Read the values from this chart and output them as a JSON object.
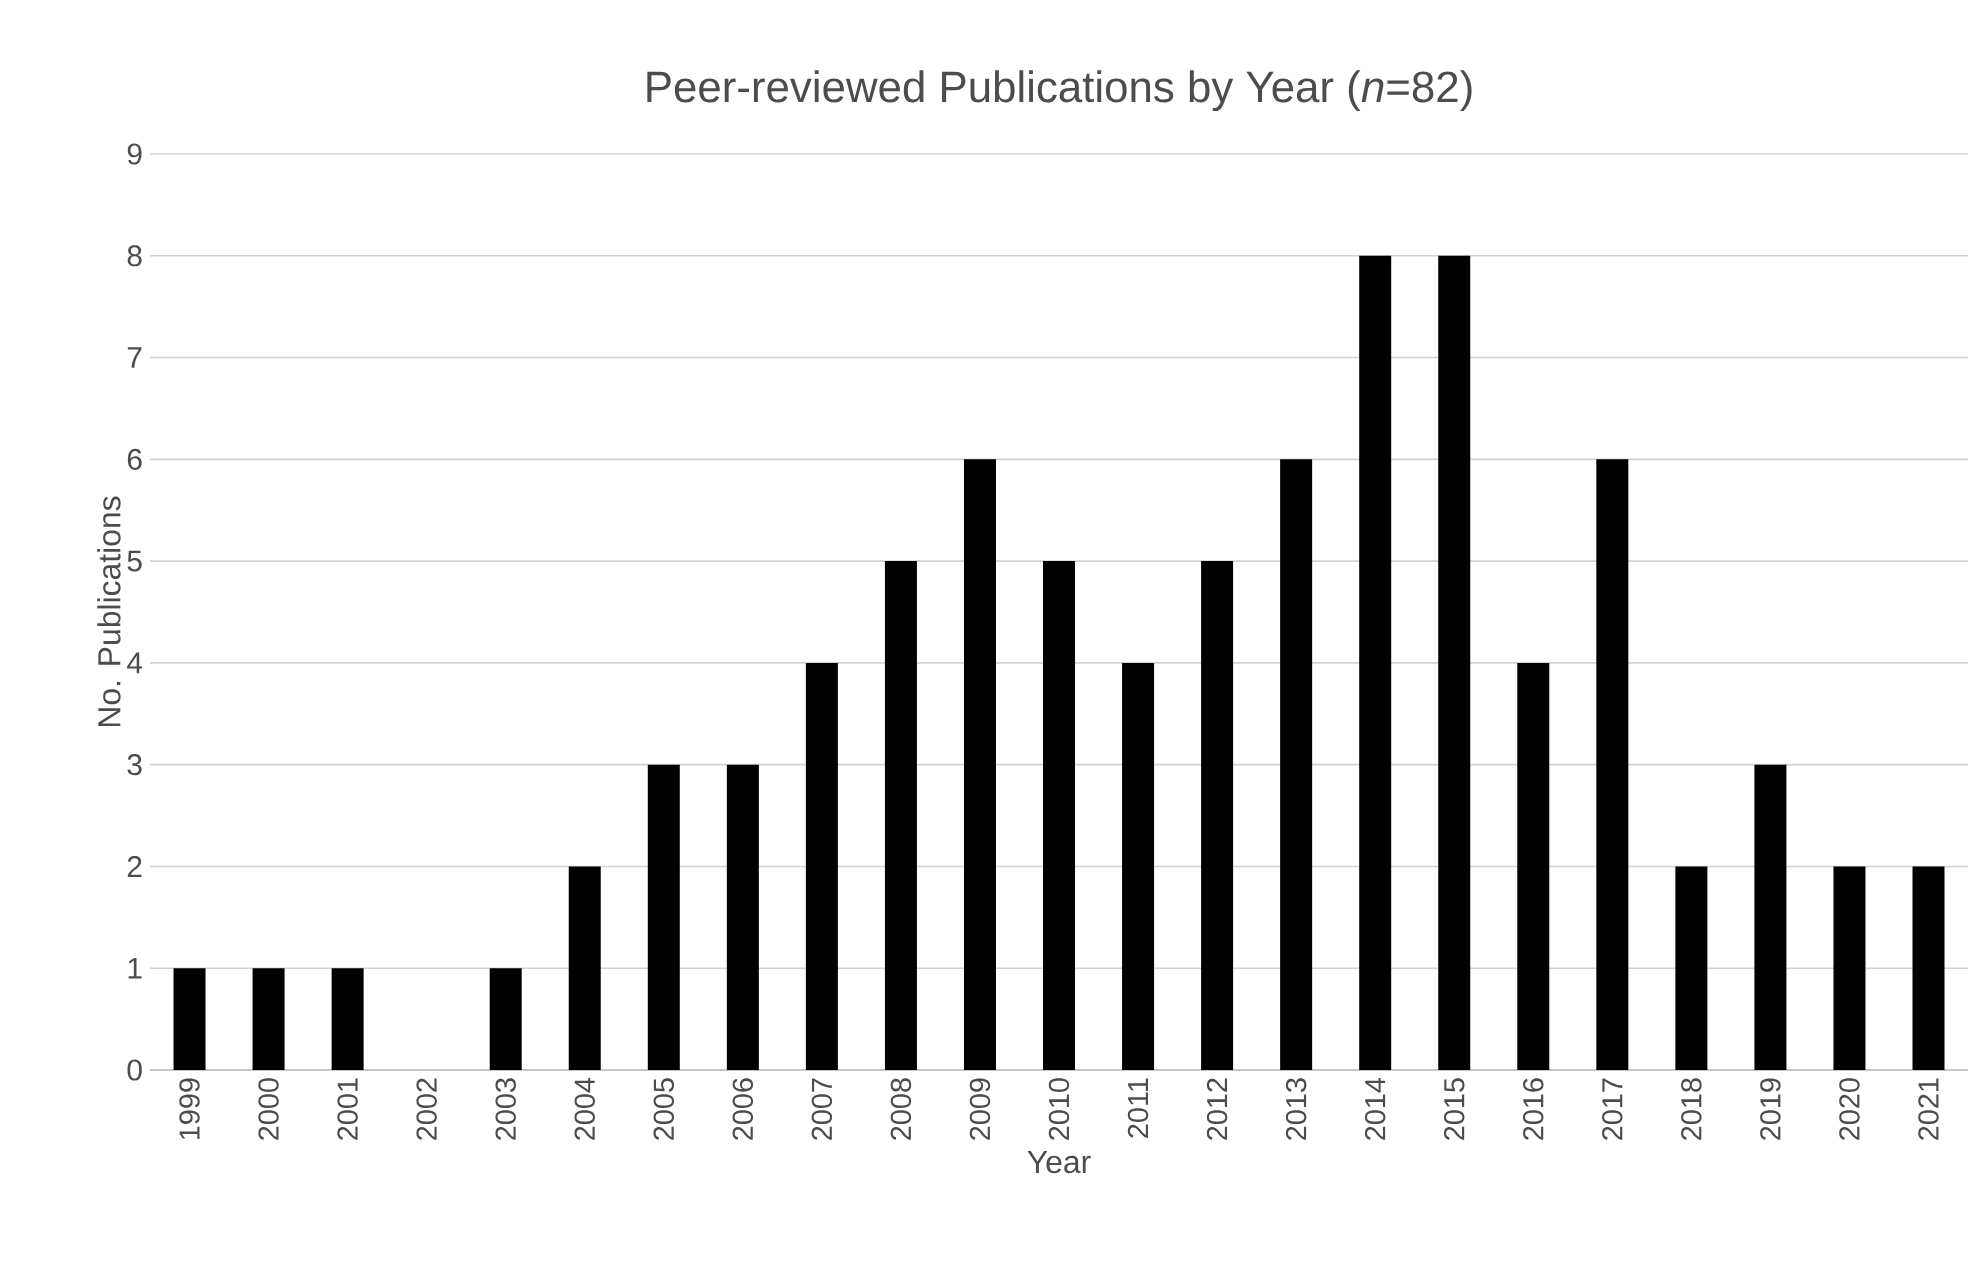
{
  "chart_data": {
    "type": "bar",
    "title": "Peer-reviewed Publications by Year (*n*=82)",
    "xlabel": "Year",
    "ylabel": "No. Publications",
    "categories": [
      "1999",
      "2000",
      "2001",
      "2002",
      "2003",
      "2004",
      "2005",
      "2006",
      "2007",
      "2008",
      "2009",
      "2010",
      "2011",
      "2012",
      "2013",
      "2014",
      "2015",
      "2016",
      "2017",
      "2018",
      "2019",
      "2020",
      "2021"
    ],
    "values": [
      1,
      1,
      1,
      0,
      1,
      2,
      3,
      3,
      4,
      5,
      6,
      5,
      4,
      5,
      6,
      8,
      8,
      4,
      6,
      2,
      3,
      2,
      2
    ],
    "color": "#000000",
    "ylim": [
      0,
      9
    ],
    "yticks": [
      0,
      1,
      2,
      3,
      4,
      5,
      6,
      7,
      8,
      9
    ],
    "grid": "y"
  }
}
